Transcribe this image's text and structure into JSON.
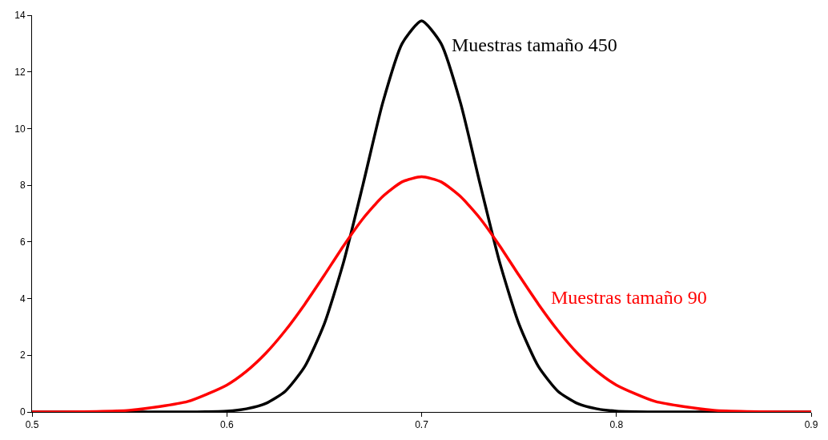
{
  "chart_data": {
    "type": "line",
    "x": [
      0.5,
      0.55,
      0.58,
      0.6,
      0.61,
      0.62,
      0.63,
      0.64,
      0.65,
      0.66,
      0.67,
      0.68,
      0.69,
      0.7,
      0.71,
      0.72,
      0.73,
      0.74,
      0.75,
      0.76,
      0.77,
      0.78,
      0.79,
      0.8,
      0.82,
      0.85,
      0.9
    ],
    "series": [
      {
        "color": "#000000",
        "values": [
          0,
          0,
          0,
          0.03,
          0.11,
          0.3,
          0.73,
          1.6,
          3.1,
          5.3,
          8.05,
          10.9,
          13.0,
          13.8,
          13.0,
          10.9,
          8.05,
          5.3,
          3.1,
          1.6,
          0.73,
          0.3,
          0.11,
          0.03,
          0,
          0,
          0
        ]
      },
      {
        "color": "#ff0000",
        "values": [
          0,
          0.06,
          0.37,
          0.95,
          1.43,
          2.07,
          2.87,
          3.8,
          4.82,
          5.87,
          6.83,
          7.6,
          8.12,
          8.3,
          8.12,
          7.6,
          6.83,
          5.87,
          4.82,
          3.8,
          2.87,
          2.07,
          1.43,
          0.95,
          0.37,
          0.06,
          0
        ]
      }
    ],
    "annotations": [
      "Muestras tamaño 450",
      "Muestras tamaño 90"
    ],
    "xlim": [
      0.5,
      0.9
    ],
    "xticks": [
      0.5,
      0.6,
      0.7,
      0.8,
      0.9
    ],
    "ylim": [
      0,
      14
    ],
    "yticks": [
      0,
      2,
      4,
      6,
      8,
      10,
      12,
      14
    ],
    "legend": false
  }
}
